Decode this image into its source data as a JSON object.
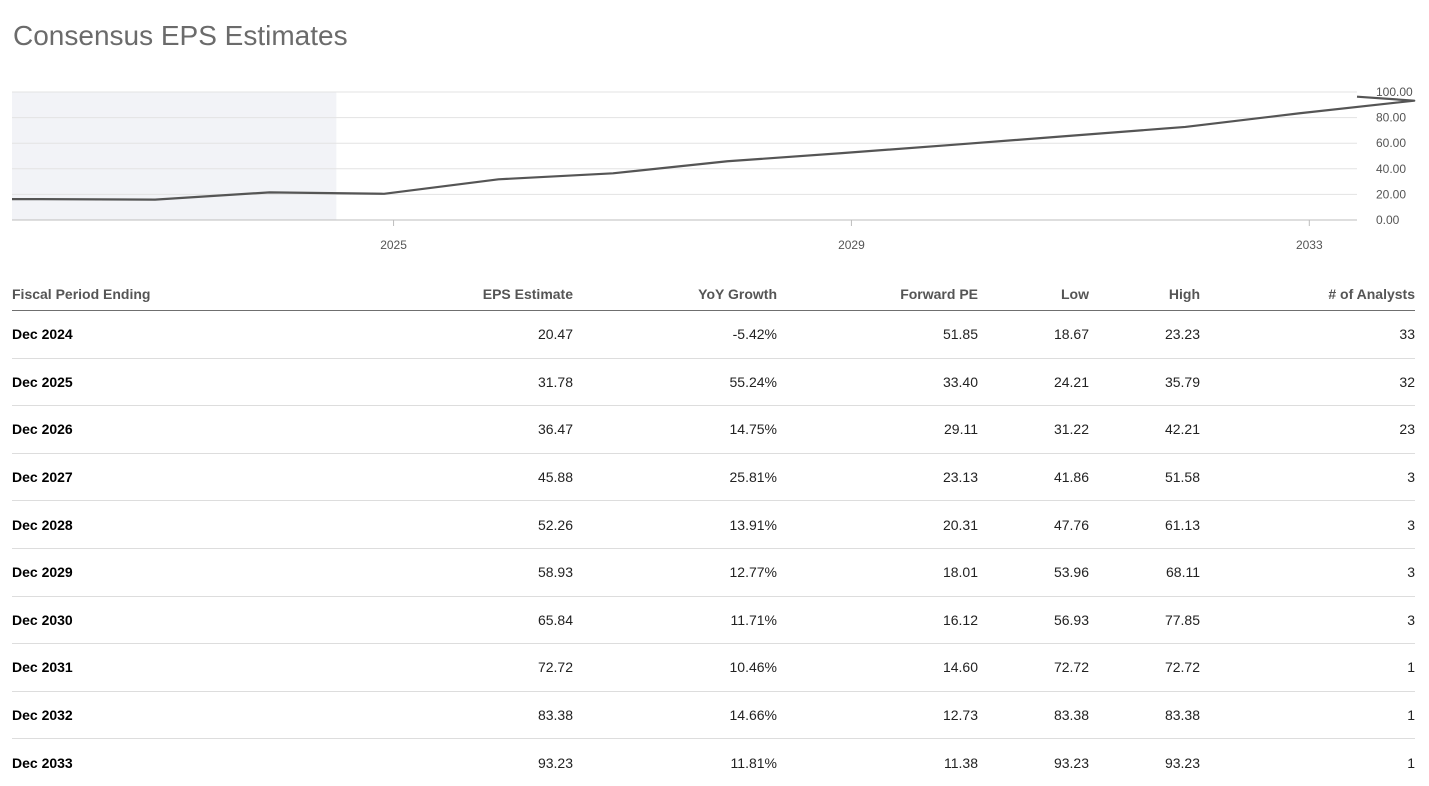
{
  "page": {
    "title": "Consensus EPS Estimates"
  },
  "colors": {
    "line": "#555555",
    "shade": "#f2f3f7",
    "grid": "#e3e3e3",
    "axis": "#bdbdbd",
    "tick_text": "#555555"
  },
  "chart_data": {
    "type": "line",
    "title": "",
    "xlabel": "",
    "ylabel": "",
    "x": [
      "Dec 2021",
      "Dec 2022",
      "Dec 2023",
      "Dec 2024",
      "Dec 2025",
      "Dec 2026",
      "Dec 2027",
      "Dec 2028",
      "Dec 2029",
      "Dec 2030",
      "Dec 2031",
      "Dec 2032",
      "Dec 2033"
    ],
    "series": [
      {
        "values": [
          16.3,
          15.9,
          21.6,
          20.47,
          31.78,
          36.47,
          45.88,
          52.26,
          58.93,
          65.84,
          72.72,
          83.38,
          93.23
        ]
      }
    ],
    "xlim": [
      "Sep 2021",
      "Jun 2033"
    ],
    "x_ticks": [
      "2025",
      "2029",
      "2033"
    ],
    "ylim": [
      0,
      100
    ],
    "y_ticks": [
      "0.00",
      "20.00",
      "40.00",
      "60.00",
      "80.00",
      "100.00"
    ],
    "y_axis_position": "right",
    "shaded_region": [
      "Sep 2021",
      "Jul 2024"
    ],
    "grid": true,
    "legend": "none"
  },
  "table": {
    "headers": [
      "Fiscal Period Ending",
      "EPS Estimate",
      "YoY Growth",
      "Forward PE",
      "Low",
      "High",
      "# of Analysts"
    ],
    "rows": [
      [
        "Dec 2024",
        "20.47",
        "-5.42%",
        "51.85",
        "18.67",
        "23.23",
        "33"
      ],
      [
        "Dec 2025",
        "31.78",
        "55.24%",
        "33.40",
        "24.21",
        "35.79",
        "32"
      ],
      [
        "Dec 2026",
        "36.47",
        "14.75%",
        "29.11",
        "31.22",
        "42.21",
        "23"
      ],
      [
        "Dec 2027",
        "45.88",
        "25.81%",
        "23.13",
        "41.86",
        "51.58",
        "3"
      ],
      [
        "Dec 2028",
        "52.26",
        "13.91%",
        "20.31",
        "47.76",
        "61.13",
        "3"
      ],
      [
        "Dec 2029",
        "58.93",
        "12.77%",
        "18.01",
        "53.96",
        "68.11",
        "3"
      ],
      [
        "Dec 2030",
        "65.84",
        "11.71%",
        "16.12",
        "56.93",
        "77.85",
        "3"
      ],
      [
        "Dec 2031",
        "72.72",
        "10.46%",
        "14.60",
        "72.72",
        "72.72",
        "1"
      ],
      [
        "Dec 2032",
        "83.38",
        "14.66%",
        "12.73",
        "83.38",
        "83.38",
        "1"
      ],
      [
        "Dec 2033",
        "93.23",
        "11.81%",
        "11.38",
        "93.23",
        "93.23",
        "1"
      ]
    ]
  }
}
